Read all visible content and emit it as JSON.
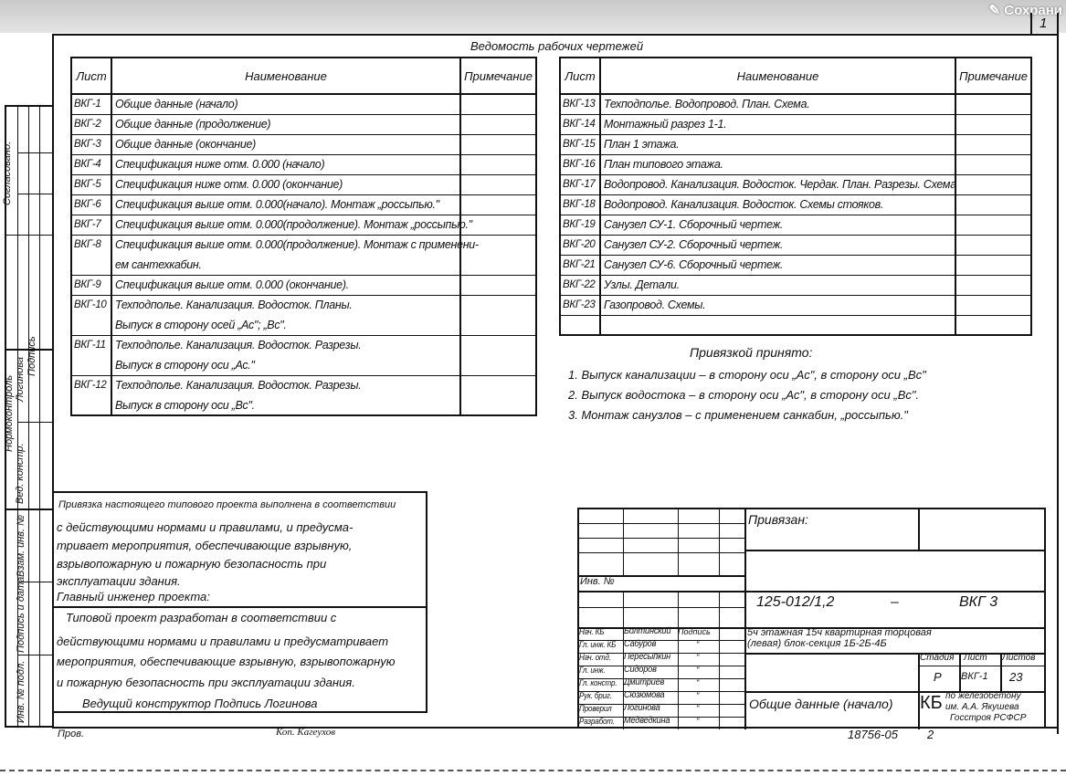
{
  "overlay": {
    "save_label": "Сохрани",
    "save_icon": "pen-icon"
  },
  "sheet_number": "1",
  "title": "Ведомость рабочих чертежей",
  "table_headers": {
    "sheet": "Лист",
    "name": "Наименование",
    "note": "Примечание"
  },
  "left_table": [
    {
      "sheet": "ВКГ-1",
      "name": "Общие   данные  (начало)"
    },
    {
      "sheet": "ВКГ-2",
      "name": "Общие   данные   (продолжение)"
    },
    {
      "sheet": "ВКГ-3",
      "name": "Общие   данные  (окончание)"
    },
    {
      "sheet": "ВКГ-4",
      "name": "Спецификация  ниже  отм. 0.000 (начало)"
    },
    {
      "sheet": "ВКГ-5",
      "name": "Спецификация  ниже отм. 0.000 (окончание)"
    },
    {
      "sheet": "ВКГ-6",
      "name": "Спецификация выше отм. 0.000(начало). Монтаж „россыпью.\""
    },
    {
      "sheet": "ВКГ-7",
      "name": "Спецификация выше отм. 0.000(продолжение). Монтаж „россыпью.\""
    },
    {
      "sheet": "ВКГ-8",
      "name": "Спецификация выше отм. 0.000(продолжение). Монтаж с применени-",
      "cont": "ем  сантехкабин."
    },
    {
      "sheet": "ВКГ-9",
      "name": "Спецификация  выше  отм. 0.000 (окончание)."
    },
    {
      "sheet": "ВКГ-10",
      "name": "Техподполье. Канализация. Водосток. Планы.",
      "cont": "Выпуск  в  сторону  осей „Ас\"; „Вс\"."
    },
    {
      "sheet": "ВКГ-11",
      "name": "Техподполье. Канализация. Водосток.  Разрезы.",
      "cont": "Выпуск  в  сторону  оси  „Ас.\""
    },
    {
      "sheet": "ВКГ-12",
      "name": "Техподполье. Канализация. Водосток. Разрезы.",
      "cont": "Выпуск   в   сторону   оси  „Вс\"."
    }
  ],
  "right_table": [
    {
      "sheet": "ВКГ-13",
      "name": "Техподполье. Водопровод. План. Схема."
    },
    {
      "sheet": "ВКГ-14",
      "name": "Монтажный  разрез  1-1."
    },
    {
      "sheet": "ВКГ-15",
      "name": "План  1  этажа."
    },
    {
      "sheet": "ВКГ-16",
      "name": "План  типового  этажа."
    },
    {
      "sheet": "ВКГ-17",
      "name": "Водопровод. Канализация. Водосток. Чердак. План. Разрезы. Схема"
    },
    {
      "sheet": "ВКГ-18",
      "name": "Водопровод. Канализация. Водосток. Схемы стояков."
    },
    {
      "sheet": "ВКГ-19",
      "name": "Санузел  СУ-1.  Сборочный  чертеж."
    },
    {
      "sheet": "ВКГ-20",
      "name": "Санузел  СУ-2.  Сборочный   чертеж."
    },
    {
      "sheet": "ВКГ-21",
      "name": "Санузел  СУ-6.  Сборочный  чертеж."
    },
    {
      "sheet": "ВКГ-22",
      "name": "Узлы.   Детали."
    },
    {
      "sheet": "ВКГ-23",
      "name": "Газопровод.  Схемы."
    },
    {
      "sheet": "",
      "name": ""
    }
  ],
  "notes": {
    "heading": "Привязкой     принято:",
    "items": [
      "1. Выпуск  канализации – в сторону  оси „Ас\", в сторону  оси „Вс\"",
      "2. Выпуск  водостока – в сторону  оси „Ас\", в  сторону  оси „Вс\".",
      "3. Монтаж  санузлов  – с применением  санкабин, „россыпью.\""
    ]
  },
  "side_stamp": {
    "agreed": "Согласовано:",
    "normcontrol": "Нормоконтроль",
    "loginova": "Логинова",
    "signature": "Подпись",
    "lead_designer": "Вед. констр.",
    "replaced_inv": "Взам. инв. №",
    "sign_date": "Подпись и дата",
    "inv_orig": "Инв. № подл."
  },
  "binding_text": {
    "lines": [
      "Привязка настоящего типового проекта выполнена в соответствии",
      "с действующими    нормами    и    правилами, и предусма-",
      "тривает  мероприятия,  обеспечивающие  взрывную,",
      "взрывопожарную  и  пожарную  безопасность  при",
      "эксплуатации   здания.",
      "Главный  инженер  проекта:"
    ]
  },
  "design_text": {
    "lines": [
      "Типовой  проект  разработан  в  соответствии  с",
      "действующими нормами и правилами и предусматривает",
      "мероприятия, обеспечивающие взрывную, взрывопожарную",
      "и  пожарную   безопасность при эксплуатации здания."
    ],
    "signoff": "Ведущий   конструктор   Подпись   Логинова"
  },
  "title_block": {
    "bound_label": "Привязан:",
    "inv_label": "Инв. №",
    "code": "125-012/1,2",
    "dash": "–",
    "set": "ВКГ 3",
    "description_line1": "5ч этажная 15ч квартирная  торцовая",
    "description_line2": "(левая)  блок-секция   1Б-2Б-4Б",
    "stage_header": "Стадия",
    "sheet_header": "Лист",
    "sheets_header": "Листов",
    "stage": "Р",
    "sheet": "ВКГ-1",
    "sheets": "23",
    "sheet_title": "Общие  данные  (начало)",
    "org_abbr": "КБ",
    "org_line1": "по железобетону",
    "org_line2": "им. А.А. Якушева",
    "org_line3": "Госстроя РСФСР",
    "signature_header": "Подпись",
    "signatures": [
      {
        "role": "Нач. КБ",
        "name": "Болтинский",
        "sign": ""
      },
      {
        "role": "Гл. инж. КБ",
        "name": "Сабуров",
        "sign": "\""
      },
      {
        "role": "Нач. отд.",
        "name": "Пересыпкин",
        "sign": "\""
      },
      {
        "role": "Гл. инж.",
        "name": "Сидоров",
        "sign": "\""
      },
      {
        "role": "Гл. констр.",
        "name": "Дмитриев",
        "sign": "\""
      },
      {
        "role": "Рук. бриг.",
        "name": "Сюзюмова",
        "sign": "\""
      },
      {
        "role": "Проверил",
        "name": "Логинова",
        "sign": "\""
      },
      {
        "role": "Разработ.",
        "name": "Медведкина",
        "sign": "\""
      }
    ]
  },
  "footer": {
    "checked": "Пров.",
    "copy": "Коп. Кагеухов",
    "doc_number": "18756-05",
    "page": "2"
  }
}
